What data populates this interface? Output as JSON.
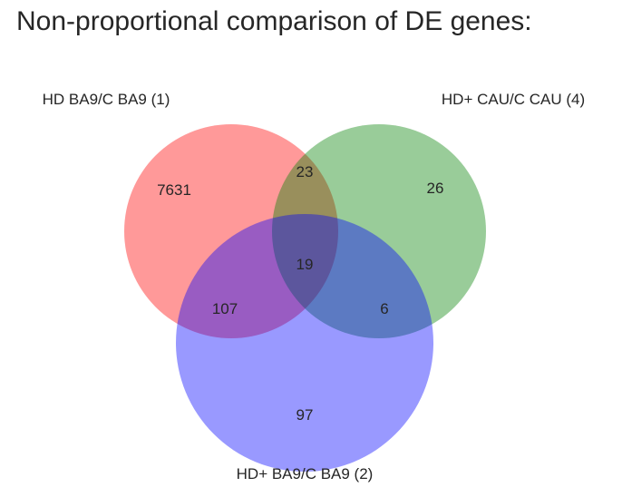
{
  "title": "Non-proportional comparison of DE genes:",
  "sets": [
    {
      "key": "A",
      "label": "HD BA9/C BA9 (1)",
      "color": "#ff0000"
    },
    {
      "key": "B",
      "label": "HD+ CAU/C CAU (4)",
      "color": "#008000"
    },
    {
      "key": "C",
      "label": "HD+ BA9/C BA9 (2)",
      "color": "#0000ff"
    }
  ],
  "regions": {
    "A_only": "7631",
    "B_only": "26",
    "C_only": "97",
    "A_B": "23",
    "A_C": "107",
    "B_C": "6",
    "A_B_C": "19"
  }
}
